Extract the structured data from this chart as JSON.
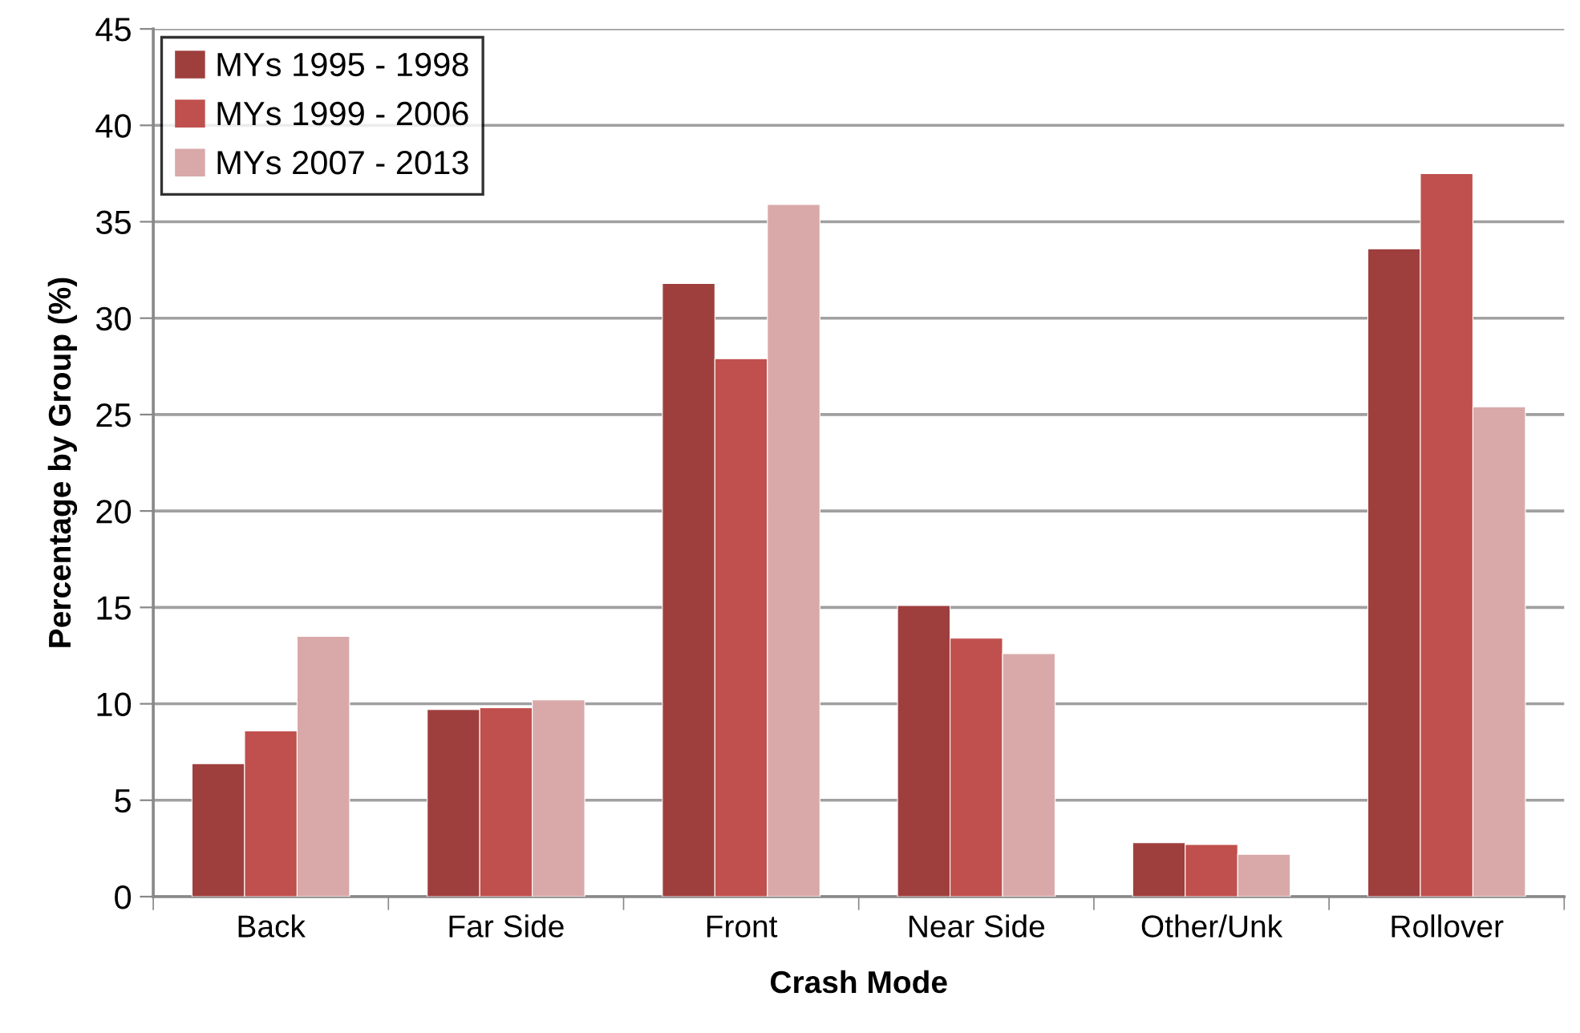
{
  "chart_data": {
    "type": "bar",
    "xlabel": "Crash Mode",
    "ylabel": "Percentage by Group (%)",
    "categories": [
      "Back",
      "Far Side",
      "Front",
      "Near Side",
      "Other/Unk",
      "Rollover"
    ],
    "series": [
      {
        "name": "MYs 1995 - 1998",
        "color": "#9e3f3e",
        "values": [
          6.9,
          9.7,
          31.8,
          15.1,
          2.8,
          33.6
        ]
      },
      {
        "name": "MYs 1999 - 2006",
        "color": "#c0504d",
        "values": [
          8.6,
          9.8,
          27.9,
          13.4,
          2.7,
          37.5
        ]
      },
      {
        "name": "MYs 2007 - 2013",
        "color": "#d9a9a9",
        "values": [
          13.5,
          10.2,
          35.9,
          12.6,
          2.2,
          25.4
        ]
      }
    ],
    "ylim": [
      0,
      45
    ],
    "yticks": [
      0,
      5,
      10,
      15,
      20,
      25,
      30,
      35,
      40,
      45
    ],
    "grid": "y",
    "legend": "top left"
  }
}
